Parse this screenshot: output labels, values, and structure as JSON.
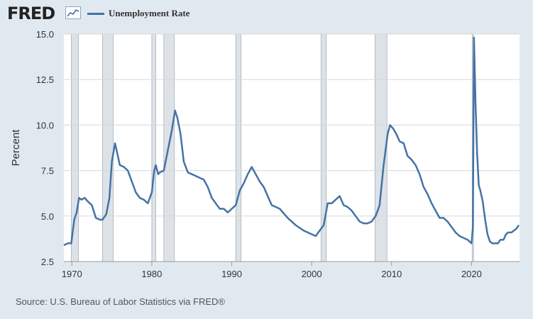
{
  "header": {
    "logo_text": "FRED",
    "logo_icon": "chart-line-icon",
    "legend_label": "Unemployment Rate",
    "legend_color": "#4572a7"
  },
  "source_note": "Source: U.S. Bureau of Labor Statistics via FRED®",
  "chart_data": {
    "type": "line",
    "title": "",
    "xlabel": "",
    "ylabel": "Percent",
    "xlim": [
      1969.0,
      2026.0
    ],
    "ylim": [
      2.5,
      15.0
    ],
    "x_ticks": [
      1970,
      1980,
      1990,
      2000,
      2010,
      2020
    ],
    "x_tick_labels": [
      "1970",
      "1980",
      "1990",
      "2000",
      "2010",
      "2020"
    ],
    "y_ticks": [
      2.5,
      5.0,
      7.5,
      10.0,
      12.5,
      15.0
    ],
    "y_tick_labels": [
      "2.5",
      "5.0",
      "7.5",
      "10.0",
      "12.5",
      "15.0"
    ],
    "grid": true,
    "line_color": "#4572a7",
    "recession_color": "#dde2e6",
    "recessions": [
      [
        1969.92,
        1970.83
      ],
      [
        1973.83,
        1975.17
      ],
      [
        1980.0,
        1980.5
      ],
      [
        1981.5,
        1982.83
      ],
      [
        1990.5,
        1991.17
      ],
      [
        2001.17,
        2001.83
      ],
      [
        2007.92,
        2009.42
      ],
      [
        2020.08,
        2020.25
      ]
    ],
    "series": [
      {
        "name": "Unemployment Rate",
        "x": [
          1969.0,
          1969.5,
          1969.92,
          1970.3,
          1970.6,
          1970.9,
          1971.2,
          1971.6,
          1972.0,
          1972.5,
          1973.0,
          1973.5,
          1973.83,
          1974.3,
          1974.7,
          1975.0,
          1975.4,
          1975.7,
          1976.0,
          1976.5,
          1977.0,
          1977.5,
          1978.0,
          1978.5,
          1979.0,
          1979.5,
          1980.0,
          1980.3,
          1980.5,
          1980.8,
          1981.0,
          1981.5,
          1982.0,
          1982.5,
          1982.9,
          1983.2,
          1983.6,
          1984.0,
          1984.5,
          1985.0,
          1985.5,
          1986.0,
          1986.5,
          1987.0,
          1987.5,
          1988.0,
          1988.5,
          1989.0,
          1989.5,
          1990.0,
          1990.5,
          1991.0,
          1991.5,
          1992.0,
          1992.5,
          1993.0,
          1993.5,
          1994.0,
          1994.5,
          1995.0,
          1996.0,
          1997.0,
          1998.0,
          1999.0,
          2000.0,
          2000.5,
          2001.0,
          2001.5,
          2002.0,
          2002.5,
          2003.0,
          2003.5,
          2004.0,
          2004.5,
          2005.0,
          2005.5,
          2006.0,
          2006.5,
          2007.0,
          2007.5,
          2008.0,
          2008.5,
          2009.0,
          2009.5,
          2009.8,
          2010.2,
          2010.6,
          2011.0,
          2011.5,
          2012.0,
          2012.5,
          2013.0,
          2013.5,
          2014.0,
          2014.5,
          2015.0,
          2015.5,
          2016.0,
          2016.5,
          2017.0,
          2017.5,
          2018.0,
          2018.5,
          2019.0,
          2019.5,
          2020.0,
          2020.17,
          2020.3,
          2020.5,
          2020.7,
          2020.9,
          2021.1,
          2021.4,
          2021.7,
          2022.0,
          2022.3,
          2022.6,
          2023.0,
          2023.3,
          2023.6,
          2024.0,
          2024.3,
          2024.6,
          2025.0,
          2025.3,
          2025.6,
          2025.9
        ],
        "values": [
          3.4,
          3.5,
          3.5,
          4.8,
          5.2,
          6.0,
          5.9,
          6.0,
          5.8,
          5.6,
          4.9,
          4.8,
          4.8,
          5.1,
          6.0,
          8.0,
          9.0,
          8.4,
          7.8,
          7.7,
          7.5,
          6.9,
          6.3,
          6.0,
          5.9,
          5.7,
          6.3,
          7.5,
          7.8,
          7.3,
          7.4,
          7.5,
          8.6,
          9.7,
          10.8,
          10.4,
          9.5,
          8.0,
          7.4,
          7.3,
          7.2,
          7.1,
          7.0,
          6.6,
          6.0,
          5.7,
          5.4,
          5.4,
          5.2,
          5.4,
          5.6,
          6.4,
          6.8,
          7.3,
          7.7,
          7.3,
          6.9,
          6.6,
          6.1,
          5.6,
          5.4,
          4.9,
          4.5,
          4.2,
          4.0,
          3.9,
          4.2,
          4.5,
          5.7,
          5.7,
          5.9,
          6.1,
          5.6,
          5.5,
          5.3,
          5.0,
          4.7,
          4.6,
          4.6,
          4.7,
          5.0,
          5.6,
          7.8,
          9.5,
          10.0,
          9.8,
          9.5,
          9.1,
          9.0,
          8.3,
          8.1,
          7.8,
          7.3,
          6.6,
          6.2,
          5.7,
          5.3,
          4.9,
          4.9,
          4.7,
          4.4,
          4.1,
          3.9,
          3.8,
          3.7,
          3.5,
          4.4,
          14.8,
          11.1,
          8.4,
          6.7,
          6.4,
          5.8,
          4.8,
          4.0,
          3.6,
          3.5,
          3.5,
          3.5,
          3.7,
          3.7,
          4.0,
          4.1,
          4.1,
          4.2,
          4.3,
          4.5
        ]
      }
    ]
  }
}
